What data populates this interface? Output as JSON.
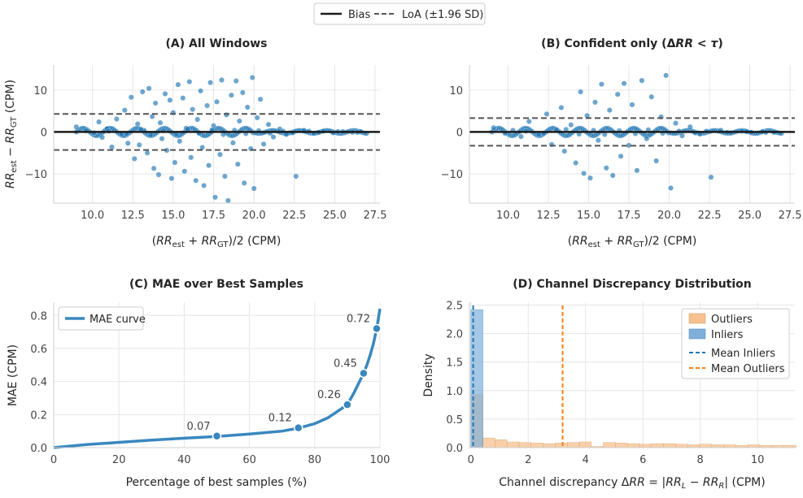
{
  "legend_top": {
    "bias_label": "Bias",
    "loa_label": "LoA (±1.96 SD)"
  },
  "colors": {
    "points": "#1f77b4",
    "curve": "#3a87bf",
    "outliers": "#f6c08f",
    "inliers": "#7fb0db",
    "mean_inliers": "#1f77b4",
    "mean_outliers": "#ff7f0e",
    "line": "#1a1a1a",
    "loa": "#555555"
  },
  "chart_data": [
    {
      "id": "A",
      "type": "scatter",
      "title": "(A) All Windows",
      "xlabel": "(RRest + RRGT)/2 (CPM)",
      "ylabel": "RRest − RRGT (CPM)",
      "xlim": [
        7.6,
        27.8
      ],
      "ylim": [
        -17,
        16
      ],
      "xticks": [
        10.0,
        12.5,
        15.0,
        17.5,
        20.0,
        22.5,
        25.0,
        27.5
      ],
      "xtick_labels": [
        "10.0",
        "12.5",
        "15.0",
        "17.5",
        "20.0",
        "22.5",
        "25.0",
        "27.5"
      ],
      "yticks": [
        -10,
        0,
        10
      ],
      "ytick_labels": [
        "−10",
        "0",
        "10"
      ],
      "bias": 0.0,
      "loa_upper": 4.3,
      "loa_lower": -4.3,
      "points": [
        [
          9.0,
          1.2
        ],
        [
          9.6,
          0.3
        ],
        [
          10.1,
          -0.2
        ],
        [
          10.4,
          2.4
        ],
        [
          10.6,
          -1.3
        ],
        [
          10.9,
          0.8
        ],
        [
          11.2,
          -3.6
        ],
        [
          11.5,
          3.1
        ],
        [
          11.8,
          -0.5
        ],
        [
          12.0,
          5.2
        ],
        [
          12.2,
          -2.7
        ],
        [
          12.4,
          8.3
        ],
        [
          12.6,
          -6.4
        ],
        [
          12.8,
          1.9
        ],
        [
          12.9,
          -3.1
        ],
        [
          13.1,
          9.6
        ],
        [
          13.2,
          0.4
        ],
        [
          13.4,
          -5.0
        ],
        [
          13.5,
          10.4
        ],
        [
          13.7,
          3.7
        ],
        [
          13.8,
          -8.7
        ],
        [
          13.9,
          6.9
        ],
        [
          14.1,
          -10.2
        ],
        [
          14.2,
          2.2
        ],
        [
          14.3,
          -1.6
        ],
        [
          14.5,
          9.1
        ],
        [
          14.6,
          -4.4
        ],
        [
          14.8,
          7.6
        ],
        [
          14.9,
          -11.1
        ],
        [
          15.0,
          4.6
        ],
        [
          15.1,
          -7.3
        ],
        [
          15.3,
          11.3
        ],
        [
          15.4,
          -2.2
        ],
        [
          15.6,
          8.1
        ],
        [
          15.7,
          -9.4
        ],
        [
          15.8,
          0.9
        ],
        [
          16.0,
          12.0
        ],
        [
          16.1,
          -6.1
        ],
        [
          16.2,
          5.4
        ],
        [
          16.4,
          -11.6
        ],
        [
          16.5,
          3.0
        ],
        [
          16.7,
          9.8
        ],
        [
          16.8,
          -3.7
        ],
        [
          16.9,
          -12.8
        ],
        [
          17.1,
          6.3
        ],
        [
          17.2,
          -8.0
        ],
        [
          17.3,
          11.8
        ],
        [
          17.5,
          1.5
        ],
        [
          17.6,
          -15.6
        ],
        [
          17.7,
          7.2
        ],
        [
          17.9,
          -5.4
        ],
        [
          18.0,
          12.4
        ],
        [
          18.2,
          -10.6
        ],
        [
          18.3,
          4.1
        ],
        [
          18.4,
          -16.4
        ],
        [
          18.6,
          8.8
        ],
        [
          18.7,
          -2.6
        ],
        [
          18.9,
          12.2
        ],
        [
          19.0,
          -7.7
        ],
        [
          19.1,
          2.6
        ],
        [
          19.3,
          9.4
        ],
        [
          19.4,
          -12.2
        ],
        [
          19.6,
          5.9
        ],
        [
          19.8,
          -4.0
        ],
        [
          19.9,
          13.0
        ],
        [
          20.0,
          -13.5
        ],
        [
          20.2,
          3.4
        ],
        [
          20.4,
          7.8
        ],
        [
          20.6,
          -2.9
        ],
        [
          20.9,
          1.8
        ],
        [
          21.2,
          -1.2
        ],
        [
          21.6,
          0.7
        ],
        [
          22.0,
          -0.6
        ],
        [
          22.6,
          -10.6
        ],
        [
          23.1,
          0.4
        ],
        [
          23.7,
          -0.3
        ],
        [
          24.3,
          0.2
        ],
        [
          24.9,
          -0.2
        ],
        [
          25.5,
          0.1
        ],
        [
          26.1,
          -0.1
        ],
        [
          26.6,
          0.1
        ],
        [
          11.0,
          0.2
        ],
        [
          12.1,
          -0.4
        ],
        [
          13.0,
          0.6
        ],
        [
          13.6,
          -0.7
        ],
        [
          14.4,
          0.3
        ],
        [
          15.2,
          -0.5
        ],
        [
          15.9,
          0.7
        ],
        [
          16.6,
          -0.3
        ],
        [
          17.4,
          0.5
        ],
        [
          18.1,
          -0.6
        ],
        [
          18.8,
          0.4
        ],
        [
          19.5,
          -0.4
        ],
        [
          20.3,
          0.3
        ],
        [
          21.0,
          -0.3
        ],
        [
          21.8,
          0.2
        ],
        [
          22.4,
          -0.2
        ],
        [
          23.4,
          0.2
        ],
        [
          24.0,
          -0.1
        ],
        [
          25.2,
          0.1
        ],
        [
          26.4,
          -0.1
        ]
      ]
    },
    {
      "id": "B",
      "type": "scatter",
      "title": "(B) Confident only (ΔRR < τ)",
      "xlabel": "(RRest + RRGT)/2 (CPM)",
      "ylabel": "",
      "xlim": [
        7.6,
        27.8
      ],
      "ylim": [
        -17,
        16
      ],
      "xticks": [
        10.0,
        12.5,
        15.0,
        17.5,
        20.0,
        22.5,
        25.0,
        27.5
      ],
      "xtick_labels": [
        "10.0",
        "12.5",
        "15.0",
        "17.5",
        "20.0",
        "22.5",
        "25.0",
        "27.5"
      ],
      "yticks": [
        -10,
        0,
        10
      ],
      "ytick_labels": [
        "−10",
        "0",
        "10"
      ],
      "bias": 0.0,
      "loa_upper": 3.3,
      "loa_lower": -3.3,
      "points": [
        [
          9.1,
          1.0
        ],
        [
          9.8,
          -0.3
        ],
        [
          10.3,
          0.4
        ],
        [
          10.8,
          -1.1
        ],
        [
          11.3,
          2.5
        ],
        [
          11.9,
          -0.6
        ],
        [
          12.4,
          4.3
        ],
        [
          12.7,
          -3.0
        ],
        [
          13.0,
          0.5
        ],
        [
          13.3,
          5.8
        ],
        [
          13.5,
          -4.6
        ],
        [
          13.9,
          1.7
        ],
        [
          14.2,
          -7.4
        ],
        [
          14.5,
          9.6
        ],
        [
          14.7,
          -9.9
        ],
        [
          14.9,
          3.9
        ],
        [
          15.1,
          -11.0
        ],
        [
          15.4,
          7.1
        ],
        [
          15.6,
          -2.0
        ],
        [
          15.8,
          11.4
        ],
        [
          16.1,
          -8.6
        ],
        [
          16.3,
          5.2
        ],
        [
          16.5,
          -10.4
        ],
        [
          16.8,
          9.0
        ],
        [
          17.0,
          -5.8
        ],
        [
          17.2,
          11.6
        ],
        [
          17.5,
          -3.2
        ],
        [
          17.7,
          6.5
        ],
        [
          18.0,
          -9.2
        ],
        [
          18.3,
          12.3
        ],
        [
          18.6,
          -1.6
        ],
        [
          18.9,
          8.4
        ],
        [
          19.2,
          -6.9
        ],
        [
          19.5,
          3.6
        ],
        [
          19.8,
          13.5
        ],
        [
          20.1,
          -13.4
        ],
        [
          20.4,
          2.1
        ],
        [
          20.8,
          -0.9
        ],
        [
          21.3,
          1.2
        ],
        [
          21.9,
          -0.5
        ],
        [
          22.6,
          -10.8
        ],
        [
          23.2,
          0.4
        ],
        [
          23.8,
          -0.2
        ],
        [
          24.5,
          0.2
        ],
        [
          25.1,
          -0.1
        ],
        [
          25.8,
          0.1
        ],
        [
          26.5,
          -0.1
        ],
        [
          11.1,
          0.2
        ],
        [
          12.2,
          -0.3
        ],
        [
          13.6,
          0.6
        ],
        [
          14.4,
          -0.5
        ],
        [
          15.3,
          0.4
        ],
        [
          16.0,
          -0.6
        ],
        [
          16.9,
          0.3
        ],
        [
          17.9,
          -0.4
        ],
        [
          18.7,
          0.5
        ],
        [
          19.6,
          -0.3
        ],
        [
          20.6,
          0.2
        ],
        [
          21.6,
          -0.2
        ],
        [
          22.3,
          0.2
        ],
        [
          23.6,
          -0.1
        ],
        [
          24.8,
          0.1
        ],
        [
          26.0,
          -0.1
        ]
      ]
    },
    {
      "id": "C",
      "type": "line",
      "title": "(C) MAE over Best Samples",
      "xlabel": "Percentage of best samples (%)",
      "ylabel": "MAE (CPM)",
      "xlim": [
        0,
        100
      ],
      "ylim": [
        0,
        0.88
      ],
      "xticks": [
        0,
        20,
        40,
        60,
        80,
        100
      ],
      "xtick_labels": [
        "0",
        "20",
        "40",
        "60",
        "80",
        "100"
      ],
      "yticks": [
        0.0,
        0.2,
        0.4,
        0.6,
        0.8
      ],
      "ytick_labels": [
        "0.0",
        "0.2",
        "0.4",
        "0.6",
        "0.8"
      ],
      "series": [
        {
          "name": "MAE curve",
          "x": [
            0,
            10,
            20,
            30,
            40,
            50,
            60,
            70,
            75,
            80,
            84,
            87,
            90,
            92,
            94,
            95,
            96,
            97,
            98,
            99,
            100
          ],
          "y": [
            0,
            0.018,
            0.032,
            0.045,
            0.057,
            0.068,
            0.082,
            0.1,
            0.118,
            0.145,
            0.18,
            0.22,
            0.26,
            0.33,
            0.41,
            0.45,
            0.5,
            0.56,
            0.63,
            0.72,
            0.84
          ]
        }
      ],
      "markers": [
        {
          "x": 50,
          "y": 0.07,
          "label": "0.07"
        },
        {
          "x": 75,
          "y": 0.12,
          "label": "0.12"
        },
        {
          "x": 90,
          "y": 0.26,
          "label": "0.26"
        },
        {
          "x": 95,
          "y": 0.45,
          "label": "0.45"
        },
        {
          "x": 99,
          "y": 0.72,
          "label": "0.72"
        }
      ]
    },
    {
      "id": "D",
      "type": "bar",
      "title": "(D) Channel Discrepancy Distribution",
      "xlabel": "Channel discrepancy ΔRR = |RRL − RRR| (CPM)",
      "ylabel": "Density",
      "xlim": [
        -0.05,
        11.3
      ],
      "ylim": [
        0,
        2.55
      ],
      "xticks": [
        0,
        2,
        4,
        6,
        8,
        10
      ],
      "xtick_labels": [
        "0",
        "2",
        "4",
        "6",
        "8",
        "10"
      ],
      "yticks": [
        0.0,
        0.5,
        1.0,
        1.5,
        2.0,
        2.5
      ],
      "ytick_labels": [
        "0.0",
        "0.5",
        "1.0",
        "1.5",
        "2.0",
        "2.5"
      ],
      "bin_width": 0.42,
      "outliers": [
        0.93,
        0.17,
        0.14,
        0.1,
        0.09,
        0.08,
        0.07,
        0.08,
        0.09,
        0.1,
        0.02,
        0.09,
        0.08,
        0.07,
        0.06,
        0.07,
        0.07,
        0.06,
        0.05,
        0.06,
        0.05,
        0.05,
        0.04,
        0.05,
        0.04,
        0.04,
        0.04
      ],
      "inliers": [
        2.42
      ],
      "mean_inliers": 0.08,
      "mean_outliers": 3.2,
      "legend": [
        "Outliers",
        "Inliers",
        "Mean Inliers",
        "Mean Outliers"
      ]
    }
  ]
}
